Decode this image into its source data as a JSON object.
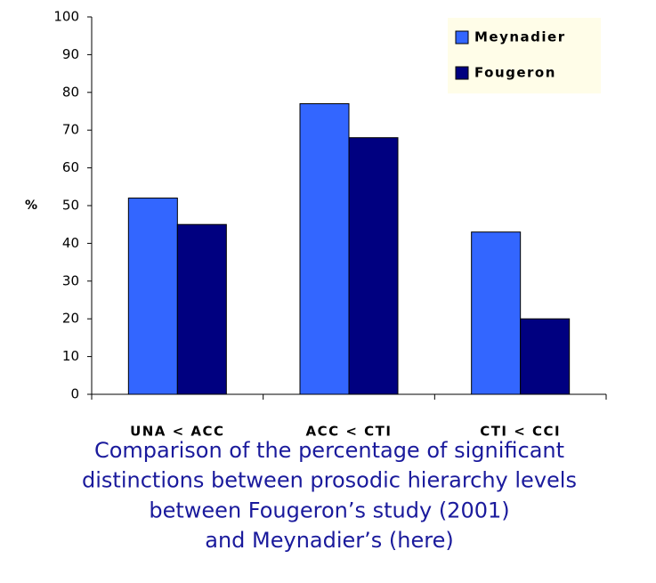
{
  "chart_data": {
    "type": "bar",
    "caption": [
      "Comparison of the percentage of significant",
      "distinctions between prosodic hierarchy levels",
      "between Fougeron’s study (2001)",
      "and Meynadier’s (here)"
    ],
    "ylabel": "%",
    "categories": [
      "UNA < ACC",
      "ACC < CTI",
      "CTI < CCI"
    ],
    "series": [
      {
        "name": "Meynadier",
        "color": "#3366ff",
        "values": [
          52,
          77,
          43
        ]
      },
      {
        "name": "Fougeron",
        "color": "#000080",
        "values": [
          45,
          68,
          20
        ]
      }
    ],
    "ylim": [
      0,
      100
    ],
    "yticks": [
      0,
      10,
      20,
      30,
      40,
      50,
      60,
      70,
      80,
      90,
      100
    ],
    "legend": "top-right"
  }
}
